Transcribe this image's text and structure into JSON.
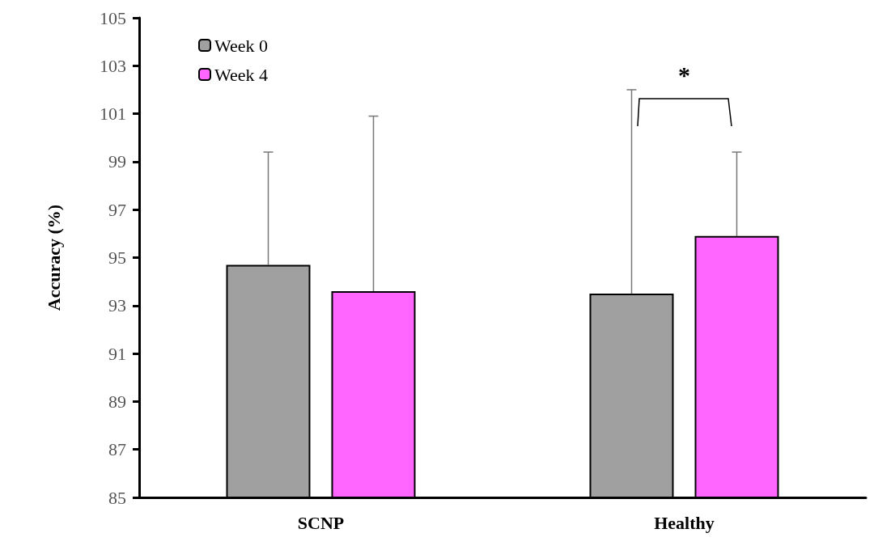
{
  "chart_data": {
    "type": "bar",
    "ylabel": "Accuracy (%)",
    "categories": [
      "SCNP",
      "Healthy"
    ],
    "series": [
      {
        "name": "Week 0",
        "color": "#a0a0a0",
        "values": [
          94.7,
          93.5
        ],
        "errors": [
          [
            94.7,
            99.4
          ],
          [
            93.5,
            102.0
          ]
        ]
      },
      {
        "name": "Week 4",
        "color": "#ff66ff",
        "values": [
          93.6,
          95.9
        ],
        "errors": [
          [
            93.6,
            100.9
          ],
          [
            95.9,
            99.4
          ]
        ]
      }
    ],
    "ylim": [
      85,
      105
    ],
    "yticks": [
      85,
      87,
      89,
      91,
      93,
      95,
      97,
      99,
      101,
      103,
      105
    ],
    "grid": false,
    "legend": "top left",
    "annotations": [
      "*"
    ]
  }
}
